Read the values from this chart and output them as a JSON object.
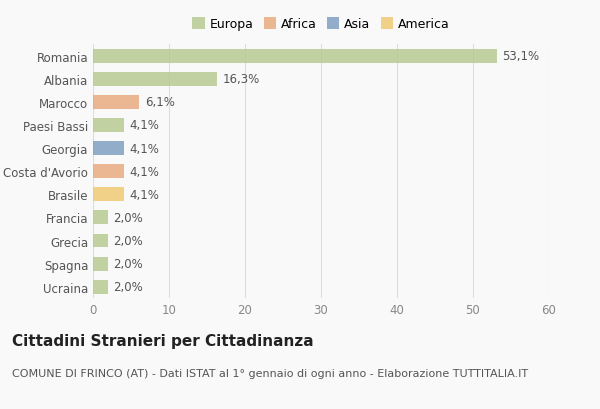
{
  "categories": [
    "Romania",
    "Albania",
    "Marocco",
    "Paesi Bassi",
    "Georgia",
    "Costa d'Avorio",
    "Brasile",
    "Francia",
    "Grecia",
    "Spagna",
    "Ucraina"
  ],
  "values": [
    53.1,
    16.3,
    6.1,
    4.1,
    4.1,
    4.1,
    4.1,
    2.0,
    2.0,
    2.0,
    2.0
  ],
  "labels": [
    "53,1%",
    "16,3%",
    "6,1%",
    "4,1%",
    "4,1%",
    "4,1%",
    "4,1%",
    "2,0%",
    "2,0%",
    "2,0%",
    "2,0%"
  ],
  "colors": [
    "#b5c98e",
    "#b5c98e",
    "#e8a87c",
    "#b5c98e",
    "#7a9cc0",
    "#e8a87c",
    "#f0c96e",
    "#b5c98e",
    "#b5c98e",
    "#b5c98e",
    "#b5c98e"
  ],
  "legend_labels": [
    "Europa",
    "Africa",
    "Asia",
    "America"
  ],
  "legend_colors": [
    "#b5c98e",
    "#e8a87c",
    "#7a9cc0",
    "#f0c96e"
  ],
  "xlim": [
    0,
    60
  ],
  "xticks": [
    0,
    10,
    20,
    30,
    40,
    50,
    60
  ],
  "title": "Cittadini Stranieri per Cittadinanza",
  "subtitle": "COMUNE DI FRINCO (AT) - Dati ISTAT al 1° gennaio di ogni anno - Elaborazione TUTTITALIA.IT",
  "bg_color": "#f9f9f9",
  "bar_height": 0.6,
  "title_fontsize": 11,
  "subtitle_fontsize": 8,
  "label_fontsize": 8.5,
  "tick_fontsize": 8.5,
  "legend_fontsize": 9
}
